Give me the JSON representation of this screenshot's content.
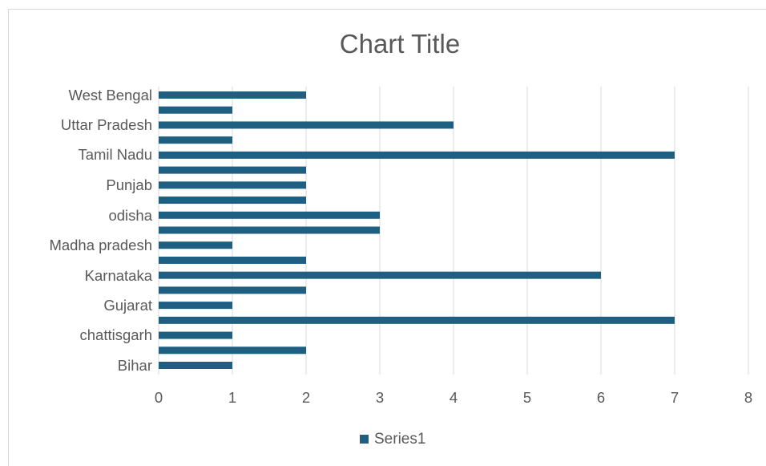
{
  "chart_data": {
    "type": "bar",
    "orientation": "horizontal",
    "title": "Chart Title",
    "xlabel": "",
    "ylabel": "",
    "xlim": [
      0,
      8
    ],
    "x_ticks": [
      "0",
      "1",
      "2",
      "3",
      "4",
      "5",
      "6",
      "7",
      "8"
    ],
    "y_tick_labels": [
      "West Bengal",
      "Uttar Pradesh",
      "Tamil Nadu",
      "Punjab",
      "odisha",
      "Madha pradesh",
      "Karnataka",
      "Gujarat",
      "chattisgarh",
      "Bihar"
    ],
    "values_top_to_bottom": [
      2,
      1,
      4,
      1,
      7,
      2,
      2,
      2,
      3,
      3,
      1,
      2,
      6,
      2,
      1,
      7,
      1,
      2,
      1
    ],
    "series": [
      {
        "name": "Series1",
        "color": "#1f5f82"
      }
    ],
    "grid": true,
    "legend": "bottom"
  }
}
